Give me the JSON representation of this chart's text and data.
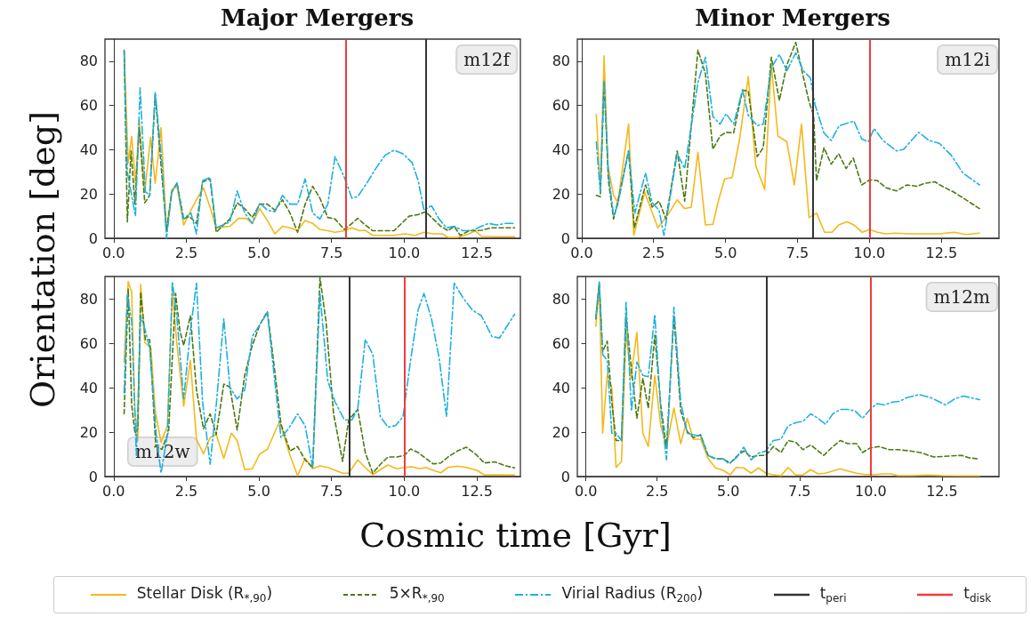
{
  "chart_data": [
    {
      "type": "line",
      "title": "Major Mergers",
      "ylabel": "Orientation [deg]",
      "legend": "bottom",
      "annotations": [
        "m12f"
      ],
      "xlim": [
        -0.3,
        14.0
      ],
      "ylim": [
        0,
        90
      ],
      "xticks": [
        {
          "value": 0,
          "label": "0.0"
        },
        2.5,
        {
          "value": 5,
          "label": "5.0"
        },
        7.5,
        {
          "value": 10,
          "label": "10.0"
        },
        12.5
      ],
      "yticks": [
        0,
        20,
        40,
        60,
        80
      ],
      "ref_lines": [
        {
          "axis": "x",
          "value": 10.74,
          "label": "t$_{peri}$",
          "color": "#333333"
        },
        {
          "axis": "x",
          "value": 8.0,
          "label": "t$_{disk}$",
          "color": "#f03c3c"
        }
      ],
      "series": [
        {
          "name": "Stellar Disk (R$_{*,90}$)",
          "color": "#f5b81c",
          "line_style": "solid",
          "x": [
            0.36,
            0.5,
            0.62,
            0.75,
            0.88,
            1.07,
            1.27,
            1.43,
            1.63,
            1.82,
            2.0,
            2.18,
            2.41,
            2.66,
            2.85,
            3.09,
            3.32,
            3.53,
            4.0,
            4.3,
            4.56,
            4.77,
            5.03,
            5.29,
            5.55,
            5.81,
            6.07,
            6.33,
            6.59,
            6.85,
            7.1,
            7.37,
            7.62,
            7.94,
            8.2,
            8.46,
            8.66,
            8.92,
            9.28,
            9.65,
            10.01,
            10.37,
            10.68,
            11.0,
            11.31,
            11.51,
            11.83,
            12.24,
            12.45,
            12.66,
            13.17,
            13.8
          ],
          "values": [
            84.5,
            34,
            46,
            24.8,
            53,
            20.8,
            45.6,
            24.8,
            50,
            3.4,
            22,
            23.5,
            6,
            12.7,
            17.4,
            22.8,
            14,
            4.7,
            5.4,
            9,
            9,
            6.7,
            13.4,
            8,
            2,
            5.4,
            4.7,
            3.4,
            8,
            6.7,
            4,
            3.4,
            2.7,
            3.4,
            4.7,
            3.4,
            3.6,
            1.3,
            1.3,
            1.3,
            2,
            1.3,
            2.7,
            2,
            2,
            0.4,
            0.4,
            2,
            3.4,
            0.9,
            0.7,
            0.7
          ]
        },
        {
          "name": "5×R$_{*,90}$",
          "color": "#4b7a12",
          "line_style": "dashed",
          "x": [
            0.36,
            0.47,
            0.6,
            0.73,
            0.88,
            1.07,
            1.24,
            1.43,
            1.63,
            1.82,
            2.0,
            2.18,
            2.41,
            2.59,
            2.85,
            3.06,
            3.32,
            3.53,
            3.73,
            4.0,
            4.25,
            4.51,
            4.77,
            5.03,
            5.29,
            5.55,
            5.81,
            6.07,
            6.33,
            6.59,
            6.85,
            7.1,
            7.37,
            7.62,
            7.94,
            8.2,
            8.4,
            8.66,
            8.92,
            9.28,
            9.65,
            9.91,
            10.17,
            10.48,
            10.74,
            11.0,
            11.26,
            11.51,
            11.72,
            11.93,
            12.24,
            12.66,
            12.97,
            13.28,
            13.8
          ],
          "values": [
            85,
            7.4,
            39.5,
            15.4,
            50,
            16,
            19.4,
            65,
            33,
            3.4,
            20.8,
            25,
            8.7,
            10,
            6.7,
            25.5,
            26.8,
            2.7,
            5.4,
            8.7,
            16,
            13.4,
            9.4,
            15.4,
            15.4,
            12.7,
            17.4,
            11.4,
            2.7,
            15.4,
            23.5,
            18.1,
            9.4,
            8.7,
            4,
            6.7,
            9,
            6,
            3.4,
            3.4,
            3.4,
            6.7,
            10,
            10.7,
            12,
            8.7,
            5.4,
            3.4,
            5.4,
            1.3,
            3.4,
            3.6,
            4.7,
            4.7,
            4.7
          ]
        },
        {
          "name": "Virial Radius (R$_{200}$)",
          "color": "#1fb0e0",
          "line_style": "dashdot",
          "x": [
            0.36,
            0.47,
            0.75,
            0.91,
            1.09,
            1.24,
            1.43,
            1.66,
            1.82,
            2.0,
            2.18,
            2.39,
            2.66,
            2.85,
            3.06,
            3.32,
            3.53,
            4.0,
            4.25,
            4.51,
            4.77,
            5.03,
            5.29,
            5.55,
            5.81,
            6.07,
            6.33,
            6.59,
            6.85,
            7.1,
            7.37,
            7.62,
            7.94,
            8.2,
            8.4,
            8.71,
            9.02,
            9.34,
            9.65,
            9.96,
            10.27,
            10.48,
            10.68,
            10.94,
            11.2,
            11.46,
            11.72,
            12.03,
            12.34,
            12.66,
            12.91,
            13.17,
            13.49,
            13.8
          ],
          "values": [
            84.5,
            30,
            10,
            68,
            21,
            19.4,
            66,
            34,
            0,
            21,
            25,
            8.7,
            11.4,
            2,
            26,
            27.5,
            4.7,
            7.4,
            21.4,
            11.4,
            6.7,
            16,
            12.7,
            12,
            19.4,
            15.4,
            15.4,
            26.8,
            11.4,
            8.7,
            15.4,
            36.9,
            27.5,
            18.1,
            18.8,
            24.8,
            31.5,
            37.5,
            39.8,
            38.2,
            34.2,
            26.1,
            12.7,
            14.7,
            8.7,
            4.7,
            5.4,
            3.4,
            3.6,
            5.4,
            6.7,
            6,
            6.7,
            6.7
          ]
        }
      ]
    },
    {
      "type": "line",
      "title": "Minor Mergers",
      "annotations": [
        "m12i"
      ],
      "xlim": [
        -0.15,
        14.5
      ],
      "ylim": [
        0,
        90
      ],
      "xticks": [
        {
          "value": 0,
          "label": "0.0"
        },
        2.5,
        {
          "value": 5,
          "label": "5.0"
        },
        7.5,
        {
          "value": 10,
          "label": "10.0"
        },
        12.5
      ],
      "yticks": [
        0,
        20,
        40,
        60,
        80
      ],
      "ref_lines": [
        {
          "axis": "x",
          "value": 8.02,
          "color": "#333333"
        },
        {
          "axis": "x",
          "value": 10.0,
          "color": "#f03c3c"
        }
      ],
      "series": [
        {
          "color": "#f5b81c",
          "line_style": "solid",
          "x": [
            0.51,
            0.65,
            0.78,
            0.91,
            1.11,
            1.26,
            1.63,
            1.81,
            2.19,
            2.65,
            3.0,
            3.32,
            3.58,
            3.81,
            4.04,
            4.3,
            4.56,
            4.76,
            4.97,
            5.23,
            5.49,
            5.79,
            6.05,
            6.36,
            6.59,
            6.82,
            7.13,
            7.39,
            7.64,
            7.9,
            8.16,
            8.44,
            8.7,
            8.93,
            9.22,
            9.46,
            9.75,
            10.01,
            10.27,
            10.58,
            10.88,
            11.4,
            11.92,
            12.43,
            12.94,
            13.35,
            13.82
          ],
          "values": [
            55.9,
            21.4,
            82.4,
            32.8,
            19.4,
            16.1,
            51.6,
            1.3,
            20.8,
            4.7,
            10.7,
            17.4,
            13.4,
            14.1,
            38.9,
            6,
            6.3,
            17.4,
            26.8,
            27.5,
            44.9,
            73.1,
            32.8,
            22.1,
            78.4,
            46.2,
            43.6,
            24.1,
            51.6,
            9.4,
            11.4,
            2.7,
            2.7,
            6,
            7.4,
            6,
            2.7,
            4,
            2.7,
            2,
            2.3,
            2,
            2,
            2,
            2.7,
            1.7,
            2.3
          ]
        },
        {
          "color": "#4b7a12",
          "line_style": "dashed",
          "x": [
            0.51,
            0.65,
            0.78,
            0.93,
            1.11,
            1.26,
            1.63,
            1.83,
            2.22,
            2.45,
            2.69,
            2.93,
            3.32,
            3.58,
            4.04,
            4.3,
            4.56,
            4.81,
            5.02,
            5.28,
            5.59,
            5.79,
            6.1,
            6.31,
            6.59,
            6.87,
            7.13,
            7.44,
            7.7,
            7.9,
            8.06,
            8.16,
            8.42,
            8.67,
            8.93,
            9.19,
            9.44,
            9.73,
            10.01,
            10.27,
            10.58,
            10.94,
            11.3,
            11.66,
            11.91,
            12.27,
            12.53,
            12.94,
            13.35,
            13.82
          ],
          "values": [
            19.4,
            18.8,
            71,
            26.1,
            8.7,
            16.8,
            39.5,
            4.7,
            24.1,
            14.1,
            16.8,
            8.7,
            39.5,
            16.8,
            85.1,
            74.4,
            40.2,
            46.2,
            47.9,
            47.6,
            67,
            66.4,
            36.9,
            40.9,
            81.8,
            62.3,
            78.4,
            88.5,
            73.1,
            61.7,
            55.6,
            26.1,
            40.9,
            33.5,
            38.2,
            31.5,
            36.2,
            24.1,
            26.4,
            26.1,
            22.8,
            21.4,
            24.1,
            23.5,
            24.8,
            25.5,
            23.5,
            20.8,
            17.4,
            13.4
          ]
        },
        {
          "color": "#1fb0e0",
          "line_style": "dashdot",
          "x": [
            0.51,
            0.65,
            0.78,
            0.93,
            1.11,
            1.26,
            1.63,
            1.85,
            2.22,
            2.45,
            2.69,
            2.86,
            3.32,
            3.58,
            4.04,
            4.3,
            4.56,
            4.81,
            5.02,
            5.28,
            5.59,
            5.79,
            6.1,
            6.31,
            6.59,
            6.87,
            7.13,
            7.44,
            7.7,
            7.95,
            8.11,
            8.42,
            8.67,
            8.95,
            9.46,
            9.73,
            9.96,
            10.16,
            10.47,
            10.94,
            11.19,
            11.71,
            12.07,
            12.43,
            12.84,
            13.25,
            13.82
          ],
          "values": [
            43.6,
            20.8,
            71,
            29.5,
            10,
            15.4,
            39.5,
            11.4,
            29.5,
            16.1,
            12.7,
            1.3,
            38.2,
            31.5,
            70.4,
            81.8,
            55,
            51.6,
            56.3,
            51.6,
            67,
            55.6,
            50.9,
            51.6,
            77.1,
            83.1,
            75.7,
            83.8,
            75.7,
            72.4,
            60.3,
            47.6,
            44.2,
            50.9,
            52.9,
            44.9,
            43.6,
            49.6,
            44.2,
            39.5,
            40.2,
            47.9,
            44.2,
            42.9,
            37.5,
            29.5,
            24.1
          ]
        }
      ]
    },
    {
      "type": "line",
      "xlabel": "Cosmic time [Gyr]",
      "annotations": [
        "m12w"
      ],
      "xlim": [
        -0.3,
        14.0
      ],
      "ylim": [
        0,
        90
      ],
      "xticks": [
        {
          "value": 0,
          "label": "0.0"
        },
        2.5,
        {
          "value": 5,
          "label": "5.0"
        },
        7.5,
        {
          "value": 10,
          "label": "10.0"
        },
        12.5
      ],
      "yticks": [
        0,
        20,
        40,
        60,
        80
      ],
      "ref_lines": [
        {
          "axis": "x",
          "value": 8.11,
          "color": "#333333"
        },
        {
          "axis": "x",
          "value": 10.0,
          "color": "#f03c3c"
        }
      ],
      "series": [
        {
          "color": "#f5b81c",
          "line_style": "solid",
          "x": [
            0.36,
            0.5,
            0.62,
            0.73,
            0.83,
            0.93,
            1.07,
            1.28,
            1.43,
            1.63,
            1.85,
            2.02,
            2.18,
            2.41,
            2.64,
            2.85,
            3.09,
            3.32,
            3.53,
            3.79,
            4.05,
            4.25,
            4.51,
            4.77,
            5.03,
            5.29,
            5.71,
            6.07,
            6.33,
            6.59,
            6.85,
            7.1,
            7.37,
            7.62,
            7.88,
            8.09,
            8.4,
            8.66,
            8.92,
            9.18,
            9.44,
            9.75,
            10.01,
            10.27,
            10.53,
            10.74,
            11.0,
            11.26,
            11.51,
            11.83,
            12.14,
            12.5,
            12.76,
            13.17,
            13.8
          ],
          "values": [
            51.6,
            87.7,
            83,
            29.5,
            16.2,
            86.4,
            60.3,
            57.9,
            29.5,
            15.5,
            22.9,
            83,
            59,
            31.6,
            52.3,
            16.8,
            10.2,
            17.5,
            18.9,
            8.2,
            19.5,
            16.2,
            3.1,
            3.5,
            10.2,
            12.2,
            24.9,
            9.5,
            0.4,
            8.2,
            3.5,
            4.8,
            4.1,
            2.8,
            1.5,
            1.5,
            7.5,
            4.1,
            0.8,
            3.1,
            5.2,
            3.5,
            4.1,
            4.4,
            3.5,
            4.1,
            2.8,
            1.7,
            4.1,
            4.7,
            4.1,
            2.8,
            0.7,
            0.8,
            0.7
          ]
        },
        {
          "color": "#4b7a12",
          "line_style": "dashed",
          "x": [
            0.36,
            0.5,
            0.62,
            0.73,
            0.83,
            0.93,
            1.09,
            1.24,
            1.45,
            1.66,
            1.89,
            2.13,
            2.28,
            2.41,
            2.64,
            2.85,
            3.09,
            3.32,
            3.53,
            3.79,
            4.0,
            4.25,
            4.51,
            4.77,
            5.03,
            5.29,
            5.5,
            5.76,
            6.07,
            6.33,
            6.59,
            6.85,
            7.1,
            7.31,
            7.57,
            7.88,
            8.09,
            8.4,
            8.66,
            8.92,
            9.18,
            9.44,
            9.75,
            10.01,
            10.22,
            10.48,
            10.74,
            11.0,
            11.26,
            11.51,
            11.83,
            12.14,
            12.45,
            12.76,
            13.12,
            13.49,
            13.8
          ],
          "values": [
            28.2,
            84.4,
            32.2,
            19.5,
            21.5,
            83,
            61.6,
            61.6,
            13.5,
            12.2,
            20.2,
            82.4,
            65.6,
            59,
            72.3,
            38.9,
            21.5,
            28.2,
            18.9,
            41.6,
            40.2,
            20.9,
            45.6,
            59,
            68.3,
            74.3,
            52.3,
            23.5,
            11.5,
            13.5,
            7.5,
            4.1,
            89.5,
            69.7,
            28.2,
            6.8,
            25.5,
            30.2,
            10.8,
            1.5,
            5.5,
            8.8,
            8.8,
            9.5,
            12.4,
            10.8,
            8.2,
            5.7,
            6.1,
            8.8,
            11.5,
            13.2,
            10.2,
            6.1,
            6.6,
            4.8,
            3.9
          ]
        },
        {
          "color": "#1fb0e0",
          "line_style": "dashdot",
          "x": [
            0.36,
            0.47,
            0.62,
            0.78,
            0.93,
            1.09,
            1.24,
            1.47,
            1.63,
            1.85,
            2.02,
            2.18,
            2.41,
            2.64,
            2.85,
            3.06,
            3.32,
            3.53,
            3.79,
            4.0,
            4.25,
            4.51,
            4.77,
            5.03,
            5.29,
            5.5,
            5.76,
            6.02,
            6.33,
            6.59,
            6.85,
            7.1,
            7.37,
            7.62,
            7.94,
            8.2,
            8.4,
            8.66,
            8.92,
            9.18,
            9.44,
            9.7,
            9.96,
            10.22,
            10.48,
            10.68,
            10.94,
            11.2,
            11.46,
            11.72,
            12.03,
            12.34,
            12.66,
            13.02,
            13.28,
            13.8
          ],
          "values": [
            37.6,
            81.7,
            69.7,
            9.5,
            72.3,
            65.6,
            57.6,
            18.2,
            1.5,
            18.9,
            87.7,
            71,
            34.9,
            65.6,
            87,
            33.6,
            5.5,
            32.2,
            71,
            40.2,
            34.9,
            38.9,
            63,
            68.3,
            73.7,
            48.3,
            17.5,
            21.5,
            28.2,
            22.9,
            4.1,
            82.4,
            42.9,
            33.6,
            25.5,
            25.5,
            30.2,
            61.6,
            54.9,
            26.9,
            22.2,
            22.9,
            26.9,
            52.3,
            75,
            82.4,
            71,
            53.6,
            26.9,
            87,
            80.3,
            75,
            72.3,
            63,
            62.3,
            73
          ]
        }
      ]
    },
    {
      "type": "line",
      "annotations": [
        "m12m"
      ],
      "xlim": [
        -0.3,
        14.5
      ],
      "ylim": [
        0,
        90
      ],
      "xticks": [
        {
          "value": 0,
          "label": "0.0"
        },
        2.5,
        {
          "value": 5,
          "label": "5.0"
        },
        7.5,
        {
          "value": 10,
          "label": "10.0"
        },
        12.5
      ],
      "yticks": [
        0,
        20,
        40,
        60,
        80
      ],
      "ref_lines": [
        {
          "axis": "x",
          "value": 6.35,
          "color": "#333333"
        },
        {
          "axis": "x",
          "value": 10.0,
          "color": "#f03c3c"
        }
      ],
      "series": [
        {
          "color": "#f5b81c",
          "line_style": "solid",
          "x": [
            0.35,
            0.47,
            0.59,
            0.75,
            0.91,
            1.06,
            1.25,
            1.41,
            1.58,
            1.79,
            2.0,
            2.19,
            2.42,
            2.63,
            2.83,
            3.09,
            3.33,
            3.56,
            3.77,
            4.03,
            4.29,
            4.55,
            4.81,
            5.07,
            5.28,
            5.54,
            5.8,
            6.06,
            6.32,
            6.58,
            6.85,
            7.1,
            7.36,
            7.62,
            7.89,
            8.15,
            8.41,
            8.67,
            8.93,
            9.19,
            9.5,
            9.81,
            10.13,
            10.44,
            10.7,
            10.96,
            11.48,
            12.0,
            12.52,
            13.15,
            13.82
          ],
          "values": [
            67.6,
            86.2,
            19.5,
            46.2,
            40.2,
            4.1,
            6.8,
            65.6,
            44.2,
            64.9,
            19.5,
            13.5,
            45.5,
            22.8,
            13.5,
            30.8,
            14.8,
            26.2,
            16.8,
            16.8,
            8.1,
            3.9,
            2.8,
            0.8,
            4.1,
            3.9,
            1.5,
            3.9,
            1.5,
            0.8,
            0.4,
            4.1,
            0.7,
            0.7,
            3.1,
            1.2,
            1.5,
            2.5,
            3.5,
            2.5,
            1.5,
            0.9,
            0.9,
            1.2,
            1.2,
            0.4,
            0.4,
            0.7,
            0.4,
            0.3,
            0.3
          ]
        },
        {
          "color": "#4b7a12",
          "line_style": "dashed",
          "x": [
            0.35,
            0.47,
            0.59,
            0.75,
            0.91,
            1.06,
            1.25,
            1.41,
            1.58,
            1.79,
            2.0,
            2.19,
            2.42,
            2.63,
            2.83,
            3.09,
            3.33,
            3.56,
            3.77,
            4.03,
            4.29,
            4.55,
            4.81,
            5.07,
            5.33,
            5.54,
            5.8,
            6.06,
            6.32,
            6.58,
            6.85,
            7.1,
            7.36,
            7.62,
            7.89,
            8.35,
            8.67,
            8.93,
            9.19,
            9.5,
            9.71,
            9.97,
            10.28,
            10.65,
            10.96,
            11.38,
            11.74,
            12.21,
            12.73,
            13.2,
            13.46,
            13.82
          ],
          "values": [
            70.9,
            86.9,
            56.2,
            60.9,
            33.5,
            16.2,
            16.2,
            72.2,
            50.9,
            26.2,
            44.2,
            30.8,
            63.6,
            32.2,
            12.8,
            72.2,
            29.5,
            20.2,
            17.5,
            18.8,
            9.5,
            8.1,
            7.9,
            6.1,
            9.5,
            11.5,
            8.8,
            9.5,
            9.5,
            13.5,
            10.8,
            16.2,
            15.5,
            12.1,
            14.2,
            9.5,
            13.5,
            16.2,
            14.8,
            14.8,
            10.8,
            12.8,
            13.5,
            12.1,
            12.1,
            11.5,
            10.8,
            8.8,
            9.2,
            9.5,
            8.4,
            7.9
          ]
        },
        {
          "color": "#1fb0e0",
          "line_style": "dashdot",
          "x": [
            0.35,
            0.47,
            0.59,
            0.75,
            0.91,
            1.06,
            1.25,
            1.41,
            1.6,
            1.79,
            2.0,
            2.19,
            2.42,
            2.63,
            2.83,
            3.09,
            3.33,
            3.56,
            3.77,
            4.03,
            4.29,
            4.55,
            4.81,
            5.02,
            5.28,
            5.54,
            5.8,
            6.06,
            6.32,
            6.58,
            6.85,
            7.1,
            7.36,
            7.62,
            7.89,
            8.15,
            8.41,
            8.67,
            8.93,
            9.19,
            9.45,
            9.71,
            10.02,
            10.23,
            10.49,
            10.75,
            11.0,
            11.27,
            11.69,
            12.1,
            12.63,
            12.94,
            13.25,
            13.82
          ],
          "values": [
            71.6,
            87.6,
            54.9,
            52.2,
            19.5,
            19.5,
            16.2,
            78.9,
            29.5,
            51.5,
            45.5,
            44.9,
            72.9,
            29.5,
            7.5,
            76.2,
            33.5,
            19.5,
            18.8,
            18.2,
            9.5,
            7.9,
            8.1,
            5.7,
            8.4,
            13.2,
            7.5,
            10.5,
            11.5,
            16.2,
            16.8,
            22.8,
            24.2,
            24.8,
            28.2,
            26.2,
            23.5,
            28.2,
            30.2,
            30.2,
            29.5,
            26.2,
            30.8,
            32.8,
            32.2,
            33.5,
            33.8,
            35.5,
            36.9,
            35.5,
            32.2,
            34.9,
            36.2,
            34.6
          ]
        }
      ]
    }
  ]
}
